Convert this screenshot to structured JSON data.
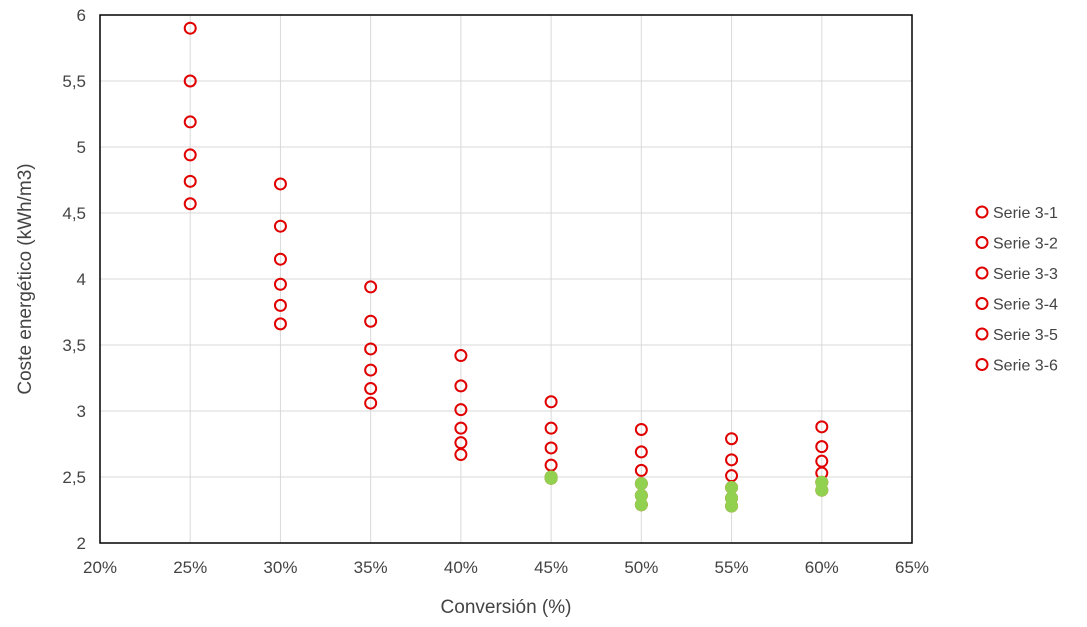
{
  "chart_data": {
    "type": "scatter",
    "title": "",
    "xlabel": "Conversión (%)",
    "ylabel": "Coste energético (kWh/m3)",
    "xlim": [
      20,
      65
    ],
    "ylim": [
      2,
      6
    ],
    "x_ticks": [
      20,
      25,
      30,
      35,
      40,
      45,
      50,
      55,
      60,
      65
    ],
    "x_tick_labels": [
      "20%",
      "25%",
      "30%",
      "35%",
      "40%",
      "45%",
      "50%",
      "55%",
      "60%",
      "65%"
    ],
    "y_ticks": [
      2,
      2.5,
      3,
      3.5,
      4,
      4.5,
      5,
      5.5,
      6
    ],
    "y_tick_labels": [
      "2",
      "2,5",
      "3",
      "3,5",
      "4",
      "4,5",
      "5",
      "5,5",
      "6"
    ],
    "grid": true,
    "legend_position": "right",
    "colors": {
      "marker_stroke": "#e00000",
      "highlight_fill": "#92d050",
      "grid": "#d9d9d9",
      "axis": "#000000"
    },
    "series": [
      {
        "name": "Serie 3-1",
        "points": [
          [
            25,
            5.9
          ],
          [
            30,
            4.72
          ],
          [
            35,
            3.94
          ],
          [
            40,
            3.42
          ],
          [
            45,
            3.07
          ],
          [
            50,
            2.86
          ],
          [
            55,
            2.79
          ],
          [
            60,
            2.88
          ]
        ]
      },
      {
        "name": "Serie 3-2",
        "points": [
          [
            25,
            5.5
          ],
          [
            30,
            4.4
          ],
          [
            35,
            3.68
          ],
          [
            40,
            3.19
          ],
          [
            45,
            2.87
          ],
          [
            50,
            2.69
          ],
          [
            55,
            2.63
          ],
          [
            60,
            2.73
          ]
        ]
      },
      {
        "name": "Serie 3-3",
        "points": [
          [
            25,
            5.19
          ],
          [
            30,
            4.15
          ],
          [
            35,
            3.47
          ],
          [
            40,
            3.01
          ],
          [
            45,
            2.72
          ],
          [
            50,
            2.55
          ],
          [
            55,
            2.51
          ],
          [
            60,
            2.62
          ]
        ]
      },
      {
        "name": "Serie 3-4",
        "points": [
          [
            25,
            4.94
          ],
          [
            30,
            3.96
          ],
          [
            35,
            3.31
          ],
          [
            40,
            2.87
          ],
          [
            45,
            2.59
          ],
          [
            50,
            2.45
          ],
          [
            55,
            2.42
          ],
          [
            60,
            2.53
          ]
        ]
      },
      {
        "name": "Serie 3-5",
        "points": [
          [
            25,
            4.74
          ],
          [
            30,
            3.8
          ],
          [
            35,
            3.17
          ],
          [
            40,
            2.76
          ],
          [
            45,
            2.5
          ],
          [
            50,
            2.36
          ],
          [
            55,
            2.34
          ],
          [
            60,
            2.46
          ]
        ]
      },
      {
        "name": "Serie 3-6",
        "points": [
          [
            25,
            4.57
          ],
          [
            30,
            3.66
          ],
          [
            35,
            3.06
          ],
          [
            40,
            2.67
          ],
          [
            45,
            2.49
          ],
          [
            50,
            2.29
          ],
          [
            55,
            2.28
          ],
          [
            60,
            2.4
          ]
        ]
      }
    ],
    "highlighted_points": [
      [
        45,
        2.5
      ],
      [
        45,
        2.49
      ],
      [
        50,
        2.45
      ],
      [
        50,
        2.36
      ],
      [
        50,
        2.29
      ],
      [
        55,
        2.42
      ],
      [
        55,
        2.34
      ],
      [
        55,
        2.28
      ],
      [
        60,
        2.46
      ],
      [
        60,
        2.4
      ]
    ]
  }
}
